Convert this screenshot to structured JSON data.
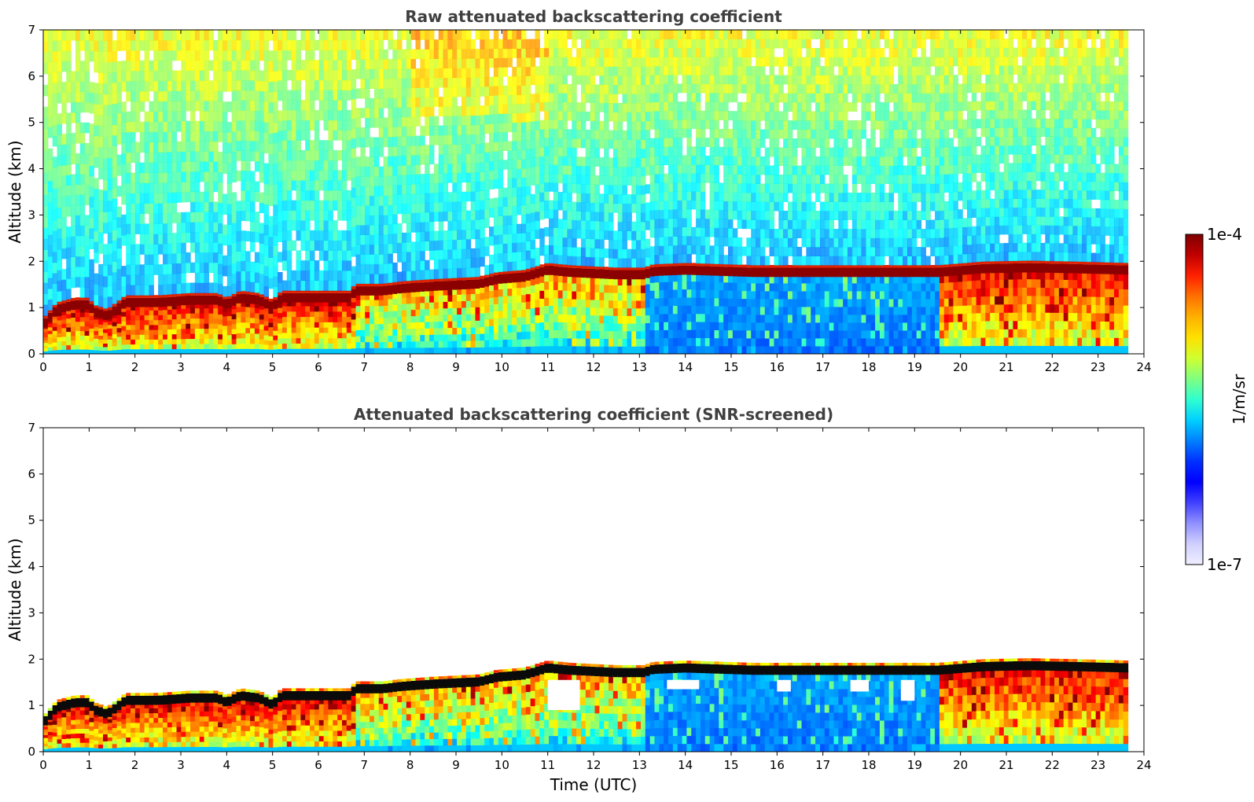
{
  "chart_data": [
    {
      "type": "heatmap",
      "title": "Raw attenuated backscattering coefficient",
      "xlabel": "",
      "ylabel": "Altitude (km)",
      "xlim": [
        0,
        24
      ],
      "ylim": [
        0,
        7
      ],
      "xticks": [
        "0",
        "1",
        "2",
        "3",
        "4",
        "5",
        "6",
        "7",
        "8",
        "9",
        "10",
        "11",
        "12",
        "13",
        "14",
        "15",
        "16",
        "17",
        "18",
        "19",
        "20",
        "21",
        "22",
        "23",
        "24"
      ],
      "yticks": [
        "0",
        "1",
        "2",
        "3",
        "4",
        "5",
        "6",
        "7"
      ],
      "data_end_time": 23.65,
      "screened": false,
      "layer_top_km": [
        [
          0,
          0.55
        ],
        [
          0.3,
          0.9
        ],
        [
          0.7,
          1.0
        ],
        [
          1.0,
          1.0
        ],
        [
          1.1,
          0.85
        ],
        [
          1.4,
          0.75
        ],
        [
          1.8,
          1.05
        ],
        [
          2.5,
          1.05
        ],
        [
          3.2,
          1.1
        ],
        [
          3.8,
          1.1
        ],
        [
          4.0,
          1.0
        ],
        [
          4.3,
          1.15
        ],
        [
          4.7,
          1.1
        ],
        [
          5.0,
          0.95
        ],
        [
          5.2,
          1.15
        ],
        [
          6.0,
          1.15
        ],
        [
          6.7,
          1.15
        ],
        [
          6.8,
          1.3
        ],
        [
          7.4,
          1.3
        ],
        [
          7.8,
          1.35
        ],
        [
          8.5,
          1.4
        ],
        [
          9.5,
          1.45
        ],
        [
          9.9,
          1.55
        ],
        [
          10.5,
          1.6
        ],
        [
          11.0,
          1.75
        ],
        [
          11.5,
          1.7
        ],
        [
          12.5,
          1.65
        ],
        [
          13.1,
          1.65
        ],
        [
          13.3,
          1.72
        ],
        [
          14.0,
          1.75
        ],
        [
          15.5,
          1.7
        ],
        [
          16.5,
          1.7
        ],
        [
          18.0,
          1.7
        ],
        [
          19.5,
          1.7
        ],
        [
          20.5,
          1.78
        ],
        [
          21.5,
          1.8
        ],
        [
          22.5,
          1.78
        ],
        [
          23.65,
          1.75
        ]
      ],
      "mixing_regions": [
        {
          "start": 0.0,
          "end": 6.7,
          "top_km": 1.0,
          "intensity": "high"
        },
        {
          "start": 6.8,
          "end": 10.0,
          "top_km": 1.3,
          "intensity": "medium"
        },
        {
          "start": 10.0,
          "end": 13.1,
          "top_km": 1.5,
          "intensity": "medium"
        },
        {
          "start": 13.1,
          "end": 19.5,
          "top_km": 1.6,
          "intensity": "low"
        },
        {
          "start": 19.5,
          "end": 23.65,
          "top_km": 1.6,
          "intensity": "high"
        }
      ]
    },
    {
      "type": "heatmap",
      "title": "Attenuated backscattering coefficient (SNR-screened)",
      "xlabel": "Time (UTC)",
      "ylabel": "Altitude (km)",
      "xlim": [
        0,
        24
      ],
      "ylim": [
        0,
        7
      ],
      "xticks": [
        "0",
        "1",
        "2",
        "3",
        "4",
        "5",
        "6",
        "7",
        "8",
        "9",
        "10",
        "11",
        "12",
        "13",
        "14",
        "15",
        "16",
        "17",
        "18",
        "19",
        "20",
        "21",
        "22",
        "23",
        "24"
      ],
      "yticks": [
        "0",
        "1",
        "2",
        "3",
        "4",
        "5",
        "6",
        "7"
      ],
      "data_end_time": 23.65,
      "screened": true,
      "layer_top_km": [
        [
          0,
          0.55
        ],
        [
          0.3,
          0.9
        ],
        [
          0.7,
          1.0
        ],
        [
          1.0,
          1.0
        ],
        [
          1.1,
          0.85
        ],
        [
          1.4,
          0.75
        ],
        [
          1.8,
          1.05
        ],
        [
          2.5,
          1.05
        ],
        [
          3.2,
          1.1
        ],
        [
          3.8,
          1.1
        ],
        [
          4.0,
          1.0
        ],
        [
          4.3,
          1.15
        ],
        [
          4.7,
          1.1
        ],
        [
          5.0,
          0.95
        ],
        [
          5.2,
          1.15
        ],
        [
          6.0,
          1.15
        ],
        [
          6.7,
          1.15
        ],
        [
          6.8,
          1.3
        ],
        [
          7.4,
          1.3
        ],
        [
          7.8,
          1.35
        ],
        [
          8.5,
          1.4
        ],
        [
          9.5,
          1.45
        ],
        [
          9.9,
          1.55
        ],
        [
          10.5,
          1.6
        ],
        [
          11.0,
          1.75
        ],
        [
          11.5,
          1.7
        ],
        [
          12.5,
          1.65
        ],
        [
          13.1,
          1.65
        ],
        [
          13.3,
          1.72
        ],
        [
          14.0,
          1.75
        ],
        [
          15.5,
          1.7
        ],
        [
          16.5,
          1.7
        ],
        [
          18.0,
          1.7
        ],
        [
          19.5,
          1.7
        ],
        [
          20.5,
          1.78
        ],
        [
          21.5,
          1.8
        ],
        [
          22.5,
          1.78
        ],
        [
          23.65,
          1.75
        ]
      ],
      "gap_regions": [
        {
          "start": 11.0,
          "end": 11.7,
          "bottom_km": 0.9,
          "top_km": 1.55
        },
        {
          "start": 13.6,
          "end": 14.3,
          "bottom_km": 1.35,
          "top_km": 1.55
        },
        {
          "start": 16.0,
          "end": 16.3,
          "bottom_km": 1.3,
          "top_km": 1.55
        },
        {
          "start": 17.6,
          "end": 18.0,
          "bottom_km": 1.3,
          "top_km": 1.55
        },
        {
          "start": 18.7,
          "end": 19.0,
          "bottom_km": 1.1,
          "top_km": 1.55
        }
      ],
      "mixing_regions": [
        {
          "start": 0.0,
          "end": 6.7,
          "top_km": 1.0,
          "intensity": "high"
        },
        {
          "start": 6.8,
          "end": 10.0,
          "top_km": 1.3,
          "intensity": "medium"
        },
        {
          "start": 10.0,
          "end": 13.1,
          "top_km": 1.5,
          "intensity": "medium"
        },
        {
          "start": 13.1,
          "end": 19.5,
          "top_km": 1.6,
          "intensity": "low"
        },
        {
          "start": 19.5,
          "end": 23.65,
          "top_km": 1.6,
          "intensity": "high"
        }
      ]
    }
  ],
  "colorbar": {
    "max_label": "1e-4",
    "min_label": "1e-7",
    "label": "1/m/sr",
    "colors": [
      "#7f0000",
      "#c00000",
      "#ff2000",
      "#ff7000",
      "#ffb000",
      "#ffe000",
      "#d0ff30",
      "#80ff80",
      "#30ffd0",
      "#00d0ff",
      "#0080ff",
      "#0030ff",
      "#0000ff",
      "#4040ff",
      "#9090ff",
      "#d0d0ff",
      "#eeeeff"
    ]
  }
}
